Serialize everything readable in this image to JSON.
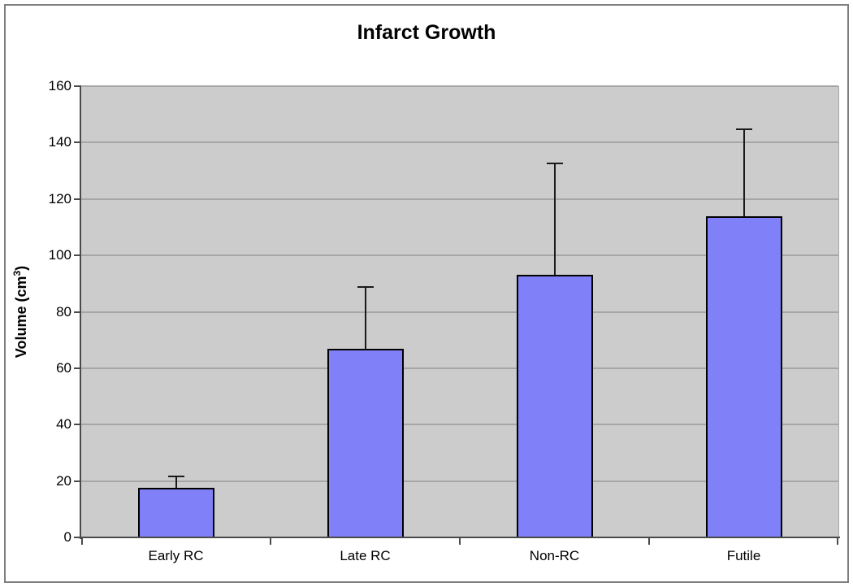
{
  "chart_data": {
    "type": "bar",
    "title": "Infarct Growth",
    "ylabel": "Volume (cm³)",
    "ylabel_parts": {
      "main": "Volume (cm",
      "sup": "3",
      "close": ")"
    },
    "xlabel": "",
    "categories": [
      "Early RC",
      "Late RC",
      "Non-RC",
      "Futile"
    ],
    "values": [
      17.5,
      67,
      93,
      114
    ],
    "error_plus": [
      4.5,
      22,
      40,
      31
    ],
    "error_tops": [
      22,
      89,
      133,
      145
    ],
    "ylim": [
      0,
      160
    ],
    "yticks": [
      0,
      20,
      40,
      60,
      80,
      100,
      120,
      140,
      160
    ],
    "grid": "horizontal",
    "legend": false,
    "plot_background": "#cccccc"
  },
  "colors": {
    "background": "#ffffff",
    "chart_border": "#7f7f7f",
    "plot_bg": "#cccccc",
    "gridline": "#a6a6a6",
    "axis": "#4a4a4a",
    "bar_fill": "#8080f8",
    "bar_border": "#000000",
    "error_bar": "#1a1a1a",
    "text": "#000000"
  }
}
